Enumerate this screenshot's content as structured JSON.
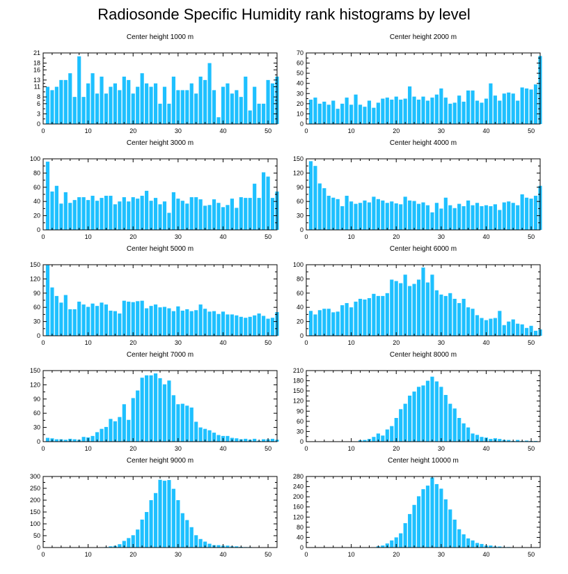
{
  "title": "Radiosonde Specific Humidity rank histograms by level",
  "colors": {
    "bar": "#1ec0ff",
    "axis": "#000000"
  },
  "chart_data": [
    {
      "type": "bar",
      "title": "Center height 1000 m",
      "xlim": [
        0,
        52
      ],
      "xticks": [
        0,
        10,
        20,
        30,
        40,
        50
      ],
      "ylim": [
        0,
        21
      ],
      "yticks": [
        0,
        3,
        6,
        8,
        11,
        13,
        16,
        18,
        21
      ],
      "values": [
        11,
        10,
        11,
        13,
        13,
        15,
        8,
        20,
        8,
        12,
        15,
        9,
        14,
        9,
        11,
        12,
        10,
        14,
        13,
        9,
        11,
        15,
        12,
        11,
        12,
        6,
        11,
        6,
        14,
        10,
        10,
        10,
        12,
        9,
        14,
        13,
        18,
        10,
        2,
        11,
        12,
        9,
        10,
        8,
        14,
        4,
        11,
        6,
        6,
        13,
        12,
        14
      ]
    },
    {
      "type": "bar",
      "title": "Center height 2000 m",
      "xlim": [
        0,
        52
      ],
      "xticks": [
        0,
        10,
        20,
        30,
        40,
        50
      ],
      "ylim": [
        0,
        70
      ],
      "yticks": [
        0,
        10,
        20,
        30,
        40,
        50,
        60,
        70
      ],
      "values": [
        24,
        26,
        20,
        22,
        19,
        23,
        15,
        20,
        26,
        19,
        29,
        19,
        17,
        23,
        16,
        21,
        25,
        26,
        24,
        27,
        24,
        25,
        37,
        27,
        24,
        27,
        23,
        26,
        29,
        35,
        26,
        20,
        21,
        28,
        22,
        33,
        33,
        23,
        21,
        25,
        40,
        28,
        23,
        30,
        31,
        30,
        23,
        36,
        35,
        34,
        39,
        67
      ]
    },
    {
      "type": "bar",
      "title": "Center height 3000 m",
      "xlim": [
        0,
        52
      ],
      "xticks": [
        0,
        10,
        20,
        30,
        40,
        50
      ],
      "ylim": [
        0,
        100
      ],
      "yticks": [
        0,
        20,
        40,
        60,
        80,
        100
      ],
      "values": [
        96,
        54,
        62,
        37,
        53,
        38,
        42,
        46,
        46,
        42,
        48,
        41,
        45,
        48,
        48,
        36,
        40,
        46,
        40,
        46,
        44,
        48,
        55,
        41,
        45,
        36,
        40,
        24,
        53,
        44,
        41,
        37,
        46,
        46,
        43,
        34,
        35,
        43,
        38,
        32,
        35,
        44,
        31,
        46,
        45,
        45,
        65,
        45,
        81,
        75,
        45,
        54
      ]
    },
    {
      "type": "bar",
      "title": "Center height 4000 m",
      "xlim": [
        0,
        52
      ],
      "xticks": [
        0,
        10,
        20,
        30,
        40,
        50
      ],
      "ylim": [
        0,
        150
      ],
      "yticks": [
        0,
        30,
        60,
        90,
        120,
        150
      ],
      "values": [
        145,
        135,
        98,
        88,
        72,
        68,
        65,
        50,
        72,
        60,
        55,
        57,
        62,
        58,
        70,
        65,
        62,
        57,
        60,
        56,
        54,
        70,
        62,
        61,
        55,
        58,
        52,
        37,
        57,
        45,
        68,
        52,
        46,
        55,
        50,
        62,
        52,
        57,
        50,
        52,
        50,
        54,
        42,
        58,
        60,
        57,
        52,
        75,
        68,
        66,
        72,
        93
      ]
    },
    {
      "type": "bar",
      "title": "Center height 5000 m",
      "xlim": [
        0,
        52
      ],
      "xticks": [
        0,
        10,
        20,
        30,
        40,
        50
      ],
      "ylim": [
        0,
        150
      ],
      "yticks": [
        0,
        30,
        60,
        90,
        120,
        150
      ],
      "values": [
        149,
        102,
        84,
        70,
        86,
        56,
        56,
        72,
        66,
        61,
        68,
        63,
        70,
        66,
        53,
        52,
        47,
        74,
        72,
        71,
        73,
        74,
        58,
        63,
        66,
        60,
        61,
        58,
        52,
        62,
        53,
        56,
        52,
        54,
        66,
        57,
        51,
        52,
        46,
        51,
        45,
        45,
        43,
        40,
        38,
        40,
        43,
        47,
        42,
        36,
        38,
        50
      ]
    },
    {
      "type": "bar",
      "title": "Center height 6000 m",
      "xlim": [
        0,
        52
      ],
      "xticks": [
        0,
        10,
        20,
        30,
        40,
        50
      ],
      "ylim": [
        0,
        100
      ],
      "yticks": [
        0,
        20,
        40,
        60,
        80,
        100
      ],
      "values": [
        35,
        30,
        36,
        38,
        38,
        33,
        34,
        43,
        46,
        40,
        48,
        52,
        51,
        53,
        59,
        56,
        56,
        60,
        79,
        77,
        74,
        86,
        70,
        73,
        79,
        96,
        75,
        86,
        64,
        58,
        56,
        60,
        52,
        46,
        52,
        40,
        38,
        29,
        25,
        22,
        24,
        25,
        35,
        15,
        20,
        23,
        17,
        16,
        11,
        14,
        7,
        9
      ]
    },
    {
      "type": "bar",
      "title": "Center height 7000 m",
      "xlim": [
        0,
        52
      ],
      "xticks": [
        0,
        10,
        20,
        30,
        40,
        50
      ],
      "ylim": [
        0,
        150
      ],
      "yticks": [
        0,
        30,
        60,
        90,
        120,
        150
      ],
      "values": [
        8,
        7,
        5,
        5,
        4,
        6,
        5,
        4,
        10,
        9,
        12,
        20,
        27,
        31,
        48,
        43,
        52,
        79,
        46,
        92,
        108,
        135,
        140,
        140,
        144,
        134,
        121,
        129,
        98,
        79,
        80,
        76,
        72,
        42,
        30,
        27,
        24,
        19,
        14,
        12,
        12,
        8,
        7,
        5,
        6,
        4,
        6,
        2,
        5,
        5,
        6,
        4
      ]
    },
    {
      "type": "bar",
      "title": "Center height 8000 m",
      "xlim": [
        0,
        52
      ],
      "xticks": [
        0,
        10,
        20,
        30,
        40,
        50
      ],
      "ylim": [
        0,
        210
      ],
      "yticks": [
        0,
        30,
        60,
        90,
        120,
        150,
        180,
        210
      ],
      "values": [
        0,
        0,
        0,
        0,
        0,
        0,
        0,
        0,
        0,
        0,
        0,
        4,
        5,
        8,
        14,
        24,
        18,
        36,
        46,
        70,
        96,
        112,
        136,
        148,
        162,
        166,
        180,
        192,
        178,
        162,
        138,
        112,
        98,
        70,
        54,
        42,
        24,
        20,
        14,
        12,
        8,
        10,
        8,
        5,
        5,
        2,
        5,
        2,
        3,
        2,
        2,
        0
      ]
    },
    {
      "type": "bar",
      "title": "Center height 9000 m",
      "xlim": [
        0,
        52
      ],
      "xticks": [
        0,
        10,
        20,
        30,
        40,
        50
      ],
      "ylim": [
        0,
        300
      ],
      "yticks": [
        0,
        50,
        100,
        150,
        200,
        250,
        300
      ],
      "values": [
        0,
        0,
        0,
        0,
        0,
        0,
        0,
        0,
        0,
        0,
        0,
        0,
        1,
        2,
        5,
        7,
        14,
        28,
        40,
        52,
        76,
        118,
        150,
        200,
        230,
        286,
        282,
        285,
        248,
        200,
        145,
        116,
        86,
        52,
        36,
        25,
        16,
        10,
        10,
        8,
        8,
        5,
        5,
        3,
        2,
        2,
        1,
        1,
        1,
        0,
        0,
        0
      ]
    },
    {
      "type": "bar",
      "title": "Center height 10000 m",
      "xlim": [
        0,
        52
      ],
      "xticks": [
        0,
        10,
        20,
        30,
        40,
        50
      ],
      "ylim": [
        0,
        280
      ],
      "yticks": [
        0,
        40,
        80,
        120,
        160,
        200,
        240,
        280
      ],
      "values": [
        0,
        0,
        0,
        0,
        0,
        0,
        0,
        0,
        0,
        0,
        0,
        0,
        0,
        0,
        0,
        5,
        8,
        16,
        28,
        40,
        56,
        96,
        132,
        168,
        202,
        230,
        244,
        276,
        250,
        232,
        190,
        150,
        110,
        72,
        52,
        36,
        28,
        18,
        14,
        8,
        8,
        4,
        4,
        2,
        2,
        1,
        1,
        0,
        0,
        0,
        0,
        0
      ]
    }
  ]
}
